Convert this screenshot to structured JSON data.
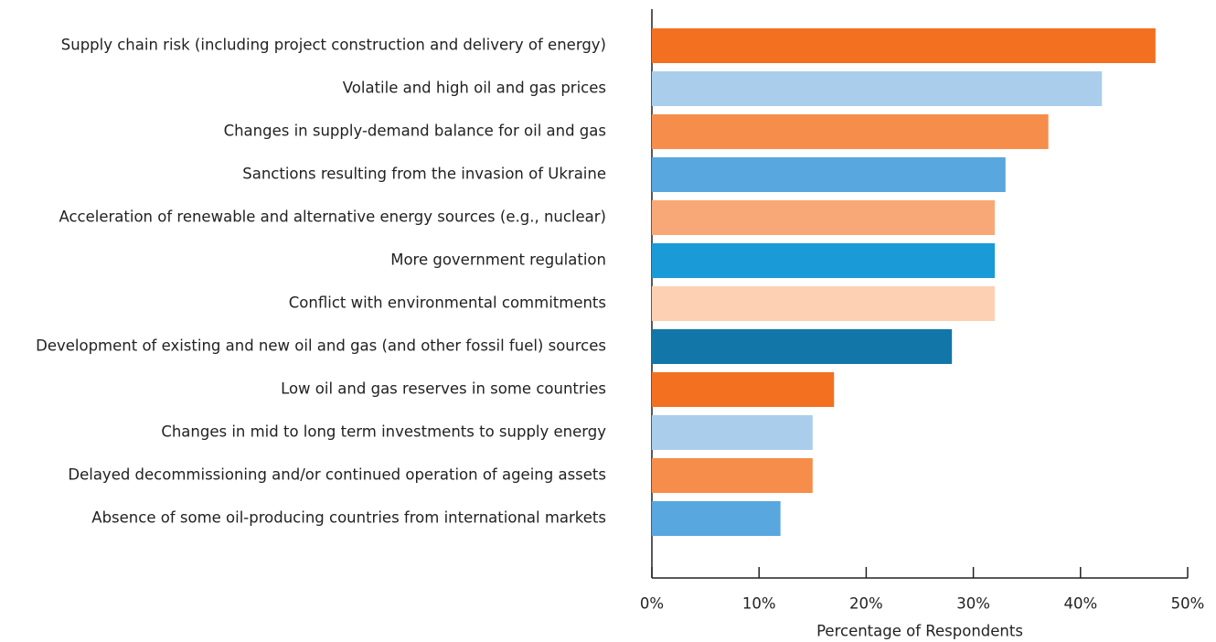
{
  "chart_data": {
    "type": "bar",
    "orientation": "horizontal",
    "x_label": "Percentage of Respondents",
    "categories": [
      "Supply chain risk (including project construction and delivery of energy)",
      "Volatile and high oil and gas prices",
      "Changes in supply-demand balance for oil and gas",
      "Sanctions resulting from the invasion of Ukraine",
      "Acceleration of renewable and alternative energy sources (e.g., nuclear)",
      "More government regulation",
      "Conflict with environmental commitments",
      "Development of existing and new oil and gas (and other fossil fuel) sources",
      "Low oil and gas reserves in some countries",
      "Changes in mid to long term investments to supply energy",
      "Delayed decommissioning and/or continued operation of ageing assets",
      "Absence of some oil-producing countries from international markets"
    ],
    "values": [
      47,
      42,
      37,
      33,
      32,
      32,
      32,
      28,
      17,
      15,
      15,
      12
    ],
    "colors": [
      "#f37021",
      "#aacdec",
      "#f68d4b",
      "#58a7de",
      "#f8a877",
      "#1a9ad6",
      "#fdd0b3",
      "#1276a9",
      "#f37021",
      "#aacdec",
      "#f68d4b",
      "#58a7de"
    ],
    "xlim": [
      0,
      50
    ],
    "xticks": [
      {
        "value": 0,
        "label": "0%"
      },
      {
        "value": 10,
        "label": "10%"
      },
      {
        "value": 20,
        "label": "20%"
      },
      {
        "value": 30,
        "label": "30%"
      },
      {
        "value": 40,
        "label": "40%"
      },
      {
        "value": 50,
        "label": "50%"
      }
    ],
    "grid": false
  }
}
